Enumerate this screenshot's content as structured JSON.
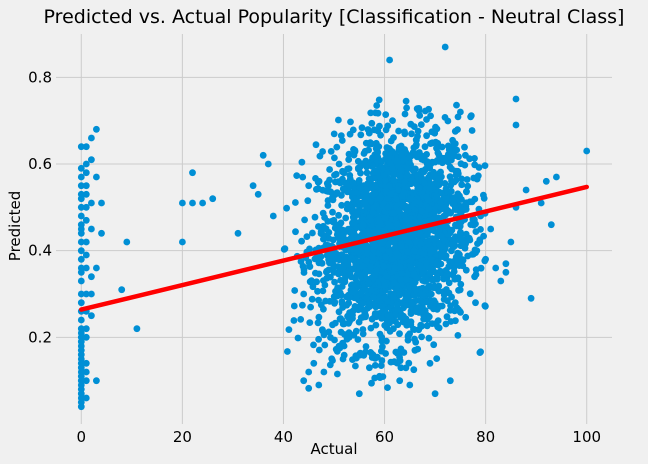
{
  "chart_data": {
    "type": "scatter",
    "title": "Predicted vs. Actual Popularity [Classification - Neutral Class]",
    "xlabel": "Actual",
    "ylabel": "Predicted",
    "xlim": [
      -5,
      105
    ],
    "ylim": [
      0,
      0.9
    ],
    "x_ticks": [
      0,
      20,
      40,
      60,
      80,
      100
    ],
    "x_tick_labels": [
      "0",
      "20",
      "40",
      "60",
      "80",
      "100"
    ],
    "y_ticks": [
      0.2,
      0.4,
      0.6,
      0.8
    ],
    "y_tick_labels": [
      "0.2",
      "0.4",
      "0.6",
      "0.8"
    ],
    "grid": true,
    "colors": {
      "points": "#008fd5",
      "fit_line": "#ff0000",
      "background": "#f0f0f0",
      "grid": "#cbcbcb"
    },
    "series": [
      {
        "kind": "points",
        "x": [
          0,
          0,
          0,
          0,
          0,
          0,
          0,
          0,
          0,
          0,
          0,
          0,
          0,
          0,
          0,
          0,
          0,
          0,
          0,
          0,
          0,
          0,
          0,
          0,
          0,
          0,
          0,
          0,
          0,
          0,
          0,
          0,
          0,
          0,
          0,
          0,
          0,
          0,
          0,
          0,
          1,
          1,
          1,
          1,
          1,
          1,
          1,
          1,
          1,
          1,
          1,
          1,
          1,
          1,
          1,
          1,
          1,
          1,
          2,
          2,
          2,
          2,
          2,
          2,
          2,
          3,
          3,
          3,
          3,
          4,
          4,
          8,
          9,
          11,
          20,
          20,
          22,
          22,
          24,
          26,
          31,
          34,
          35,
          36,
          37,
          38,
          100,
          94,
          93,
          92,
          91,
          89,
          88,
          86,
          86,
          85,
          84,
          84,
          83,
          82,
          81,
          80,
          79,
          78,
          72,
          61,
          75,
          86,
          70,
          65,
          55,
          45,
          44,
          46,
          48,
          47,
          44,
          45,
          76,
          68,
          52,
          53,
          57,
          59,
          63,
          66,
          69,
          73,
          74,
          50,
          51
        ],
        "y": [
          0.04,
          0.06,
          0.08,
          0.1,
          0.12,
          0.14,
          0.16,
          0.18,
          0.2,
          0.22,
          0.24,
          0.26,
          0.28,
          0.3,
          0.33,
          0.36,
          0.38,
          0.4,
          0.42,
          0.44,
          0.46,
          0.48,
          0.5,
          0.52,
          0.55,
          0.57,
          0.59,
          0.64,
          0.05,
          0.07,
          0.09,
          0.11,
          0.13,
          0.15,
          0.17,
          0.19,
          0.21,
          0.35,
          0.45,
          0.53,
          0.06,
          0.1,
          0.14,
          0.2,
          0.26,
          0.3,
          0.36,
          0.42,
          0.47,
          0.5,
          0.53,
          0.58,
          0.6,
          0.64,
          0.12,
          0.22,
          0.39,
          0.55,
          0.25,
          0.3,
          0.34,
          0.45,
          0.51,
          0.61,
          0.66,
          0.68,
          0.36,
          0.57,
          0.1,
          0.44,
          0.51,
          0.31,
          0.42,
          0.22,
          0.42,
          0.51,
          0.58,
          0.51,
          0.51,
          0.52,
          0.44,
          0.55,
          0.53,
          0.62,
          0.6,
          0.48,
          0.63,
          0.57,
          0.46,
          0.56,
          0.51,
          0.29,
          0.54,
          0.75,
          0.5,
          0.42,
          0.35,
          0.37,
          0.33,
          0.36,
          0.45,
          0.38,
          0.48,
          0.28,
          0.87,
          0.84,
          0.72,
          0.69,
          0.07,
          0.09,
          0.07,
          0.12,
          0.1,
          0.14,
          0.12,
          0.09,
          0.3,
          0.55,
          0.62,
          0.64,
          0.18,
          0.2,
          0.13,
          0.11,
          0.1,
          0.17,
          0.14,
          0.1,
          0.28,
          0.35,
          0.6
        ]
      },
      {
        "kind": "cluster",
        "center_x": 62,
        "center_y": 0.43,
        "spread_x": 7.5,
        "spread_y": 0.12,
        "x_range": [
          40,
          80
        ],
        "y_range": [
          0.08,
          0.75
        ],
        "count": 2600
      },
      {
        "kind": "fit_line",
        "x": [
          0,
          100
        ],
        "y": [
          0.264,
          0.547
        ]
      }
    ]
  }
}
